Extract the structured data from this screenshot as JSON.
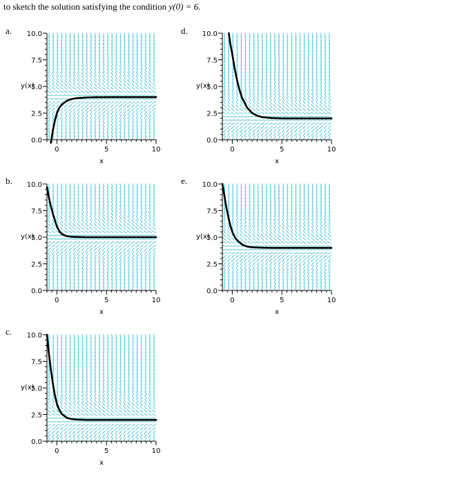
{
  "question": {
    "text_before": "to sketch the solution satisfying the condition ",
    "condition": "y(0) = 6."
  },
  "colors": {
    "slope_field": "#40c0d0",
    "solution_curve": "#000000",
    "axes": "#000000"
  },
  "chart_data": [
    {
      "letter": "a.",
      "type": "line",
      "xlabel": "x",
      "ylabel": "y(x)",
      "xlim": [
        -1,
        10
      ],
      "ylim": [
        0,
        10
      ],
      "xticks": [
        {
          "v": 0,
          "label": "0"
        },
        {
          "v": 5,
          "label": "5"
        },
        {
          "v": 10,
          "label": "10"
        }
      ],
      "yticks": [
        {
          "v": 0,
          "label": "0.0"
        },
        {
          "v": 2.5,
          "label": "2.5"
        },
        {
          "v": 5,
          "label": "5.0"
        },
        {
          "v": 7.5,
          "label": "7.5"
        },
        {
          "v": 10,
          "label": "10.0"
        }
      ],
      "equilibrium": 4,
      "series": [
        {
          "x": [
            -0.6,
            -0.4,
            -0.2,
            0,
            0.25,
            0.5,
            1,
            1.5,
            2,
            3,
            4,
            6,
            8,
            10
          ],
          "y": [
            -0.3,
            0.9,
            1.8,
            2.5,
            3.0,
            3.3,
            3.65,
            3.82,
            3.9,
            3.97,
            3.99,
            4.0,
            4.0,
            4.0
          ]
        }
      ]
    },
    {
      "letter": "b.",
      "type": "line",
      "xlabel": "x",
      "ylabel": "y(x)",
      "xlim": [
        -1,
        10
      ],
      "ylim": [
        0,
        10
      ],
      "xticks": [
        {
          "v": 0,
          "label": "0"
        },
        {
          "v": 5,
          "label": "5"
        },
        {
          "v": 10,
          "label": "10"
        }
      ],
      "yticks": [
        {
          "v": 0,
          "label": "0.0"
        },
        {
          "v": 2.5,
          "label": "2.5"
        },
        {
          "v": 5,
          "label": "5.0"
        },
        {
          "v": 7.5,
          "label": "7.5"
        },
        {
          "v": 10,
          "label": "10.0"
        }
      ],
      "equilibrium": 5,
      "series": [
        {
          "x": [
            -1,
            -0.8,
            -0.6,
            -0.4,
            -0.2,
            0,
            0.25,
            0.5,
            1,
            1.5,
            2,
            3,
            4,
            6,
            8,
            10
          ],
          "y": [
            9.7,
            8.7,
            7.9,
            7.2,
            6.6,
            6.0,
            5.55,
            5.3,
            5.1,
            5.04,
            5.02,
            5.0,
            5.0,
            5.0,
            5.0,
            5.0
          ]
        }
      ]
    },
    {
      "letter": "c.",
      "type": "line",
      "xlabel": "x",
      "ylabel": "y(x)",
      "xlim": [
        -1,
        10
      ],
      "ylim": [
        0,
        10
      ],
      "xticks": [
        {
          "v": 0,
          "label": "0"
        },
        {
          "v": 5,
          "label": "5"
        },
        {
          "v": 10,
          "label": "10"
        }
      ],
      "yticks": [
        {
          "v": 0,
          "label": "0.0"
        },
        {
          "v": 2.5,
          "label": "2.5"
        },
        {
          "v": 5,
          "label": "5.0"
        },
        {
          "v": 7.5,
          "label": "7.5"
        },
        {
          "v": 10,
          "label": "10.0"
        }
      ],
      "equilibrium": 2,
      "series": [
        {
          "x": [
            -1,
            -0.8,
            -0.6,
            -0.4,
            -0.2,
            0,
            0.25,
            0.5,
            1,
            1.5,
            2,
            3,
            4,
            6,
            8,
            10
          ],
          "y": [
            10.0,
            8.2,
            6.7,
            5.4,
            4.3,
            3.5,
            2.9,
            2.55,
            2.2,
            2.08,
            2.03,
            2.0,
            2.0,
            2.0,
            2.0,
            2.0
          ]
        }
      ]
    },
    {
      "letter": "d.",
      "type": "line",
      "xlabel": "x",
      "ylabel": "y(x)",
      "xlim": [
        -1,
        10
      ],
      "ylim": [
        0,
        10
      ],
      "xticks": [
        {
          "v": 0,
          "label": "0"
        },
        {
          "v": 5,
          "label": "5"
        },
        {
          "v": 10,
          "label": "10"
        }
      ],
      "yticks": [
        {
          "v": 0,
          "label": "0.0"
        },
        {
          "v": 2.5,
          "label": "2.5"
        },
        {
          "v": 5,
          "label": "5.0"
        },
        {
          "v": 7.5,
          "label": "7.5"
        },
        {
          "v": 10,
          "label": "10.0"
        }
      ],
      "equilibrium": 2,
      "series": [
        {
          "x": [
            -0.35,
            -0.2,
            0,
            0.25,
            0.5,
            0.75,
            1,
            1.5,
            2,
            2.5,
            3,
            4,
            5,
            6,
            8,
            10
          ],
          "y": [
            10.0,
            9.0,
            8.0,
            6.6,
            5.5,
            4.6,
            3.9,
            3.0,
            2.5,
            2.25,
            2.12,
            2.03,
            2.0,
            2.0,
            2.0,
            2.0
          ]
        }
      ]
    },
    {
      "letter": "e.",
      "type": "line",
      "xlabel": "x",
      "ylabel": "y(x)",
      "xlim": [
        -1,
        10
      ],
      "ylim": [
        0,
        10
      ],
      "xticks": [
        {
          "v": 0,
          "label": "0"
        },
        {
          "v": 5,
          "label": "5"
        },
        {
          "v": 10,
          "label": "10"
        }
      ],
      "yticks": [
        {
          "v": 0,
          "label": "0.0"
        },
        {
          "v": 2.5,
          "label": "2.5"
        },
        {
          "v": 5,
          "label": "5.0"
        },
        {
          "v": 7.5,
          "label": "7.5"
        },
        {
          "v": 10,
          "label": "10.0"
        }
      ],
      "equilibrium": 4,
      "series": [
        {
          "x": [
            -1,
            -0.8,
            -0.6,
            -0.4,
            -0.2,
            0,
            0.25,
            0.5,
            1,
            1.5,
            2,
            3,
            4,
            6,
            8,
            10
          ],
          "y": [
            10.0,
            8.9,
            7.8,
            6.9,
            6.1,
            5.5,
            5.0,
            4.7,
            4.3,
            4.12,
            4.05,
            4.01,
            4.0,
            4.0,
            4.0,
            4.0
          ]
        }
      ]
    }
  ]
}
